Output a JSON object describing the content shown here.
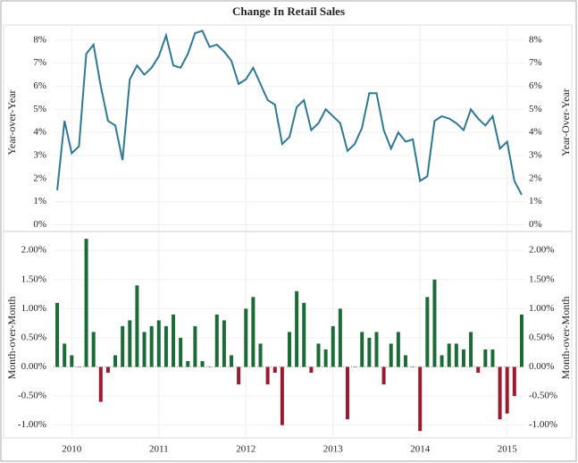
{
  "chart_data": [
    {
      "type": "line",
      "title": "Change In Retail Sales",
      "y_label": "Year-over-Year",
      "y2_label": "Year-Over-Year",
      "series": [
        {
          "name": "Year-over-Year",
          "color": "#2e7896",
          "values": [
            1.5,
            4.5,
            3.1,
            3.4,
            7.4,
            7.8,
            6.0,
            4.5,
            4.3,
            2.8,
            6.3,
            6.9,
            6.5,
            6.8,
            7.3,
            8.2,
            6.9,
            6.8,
            7.4,
            8.3,
            8.4,
            7.7,
            7.8,
            7.5,
            7.1,
            6.1,
            6.3,
            6.8,
            6.1,
            5.4,
            5.2,
            3.5,
            3.8,
            5.1,
            5.4,
            4.1,
            4.4,
            5.0,
            4.7,
            4.4,
            3.2,
            3.5,
            4.2,
            5.7,
            5.7,
            4.1,
            3.3,
            4.0,
            3.6,
            3.7,
            1.9,
            2.1,
            4.5,
            4.7,
            4.6,
            4.4,
            4.1,
            5.0,
            4.6,
            4.3,
            4.7,
            3.3,
            3.6,
            1.9,
            1.3
          ]
        }
      ],
      "ylim": [
        -0.25,
        8.65
      ],
      "yticks": [
        {
          "value": 0,
          "label": "0%"
        },
        {
          "value": 1,
          "label": "1%"
        },
        {
          "value": 2,
          "label": "2%"
        },
        {
          "value": 3,
          "label": "3%"
        },
        {
          "value": 4,
          "label": "4%"
        },
        {
          "value": 5,
          "label": "5%"
        },
        {
          "value": 6,
          "label": "6%"
        },
        {
          "value": 7,
          "label": "7%"
        },
        {
          "value": 8,
          "label": "8%"
        }
      ],
      "grid": true
    },
    {
      "type": "bar",
      "y_label": "Month-over-Month",
      "categories": [
        null,
        null,
        "2010",
        null,
        null,
        null,
        null,
        null,
        null,
        null,
        null,
        null,
        null,
        null,
        "2011",
        null,
        null,
        null,
        null,
        null,
        null,
        null,
        null,
        null,
        null,
        null,
        "2012",
        null,
        null,
        null,
        null,
        null,
        null,
        null,
        null,
        null,
        null,
        null,
        "2013",
        null,
        null,
        null,
        null,
        null,
        null,
        null,
        null,
        null,
        null,
        null,
        "2014",
        null,
        null,
        null,
        null,
        null,
        null,
        null,
        null,
        null,
        null,
        null,
        "2015",
        null,
        null
      ],
      "series": [
        {
          "name": "Month-over-Month",
          "color": "#1b6b36",
          "negative_color": "#9c1a2f",
          "values": [
            1.1,
            0.4,
            0.2,
            0.0,
            2.2,
            0.6,
            -0.6,
            -0.1,
            0.2,
            0.7,
            0.8,
            1.4,
            0.6,
            0.7,
            0.8,
            0.7,
            0.9,
            0.5,
            0.1,
            0.7,
            0.1,
            0.0,
            0.9,
            0.8,
            0.2,
            -0.3,
            1.0,
            1.2,
            0.4,
            -0.3,
            -0.1,
            -1.0,
            0.6,
            1.3,
            1.1,
            -0.1,
            0.4,
            0.3,
            0.7,
            1.0,
            -0.9,
            0.0,
            0.6,
            0.5,
            0.6,
            -0.3,
            0.4,
            0.6,
            0.2,
            0.0,
            -1.1,
            1.2,
            1.5,
            0.2,
            0.4,
            0.4,
            0.3,
            0.6,
            -0.1,
            0.3,
            0.3,
            -0.9,
            -0.8,
            -0.5,
            0.9
          ]
        }
      ],
      "ylim": [
        -1.22,
        2.31
      ],
      "yticks": [
        {
          "value": -1,
          "label": "-1.00%"
        },
        {
          "value": -0.5,
          "label": "-0.50%"
        },
        {
          "value": 0,
          "label": "0.00%"
        },
        {
          "value": 0.5,
          "label": "0.50%"
        },
        {
          "value": 1,
          "label": "1.00%"
        },
        {
          "value": 1.5,
          "label": "1.50%"
        },
        {
          "value": 2,
          "label": "2.00%"
        }
      ],
      "grid": true
    }
  ]
}
